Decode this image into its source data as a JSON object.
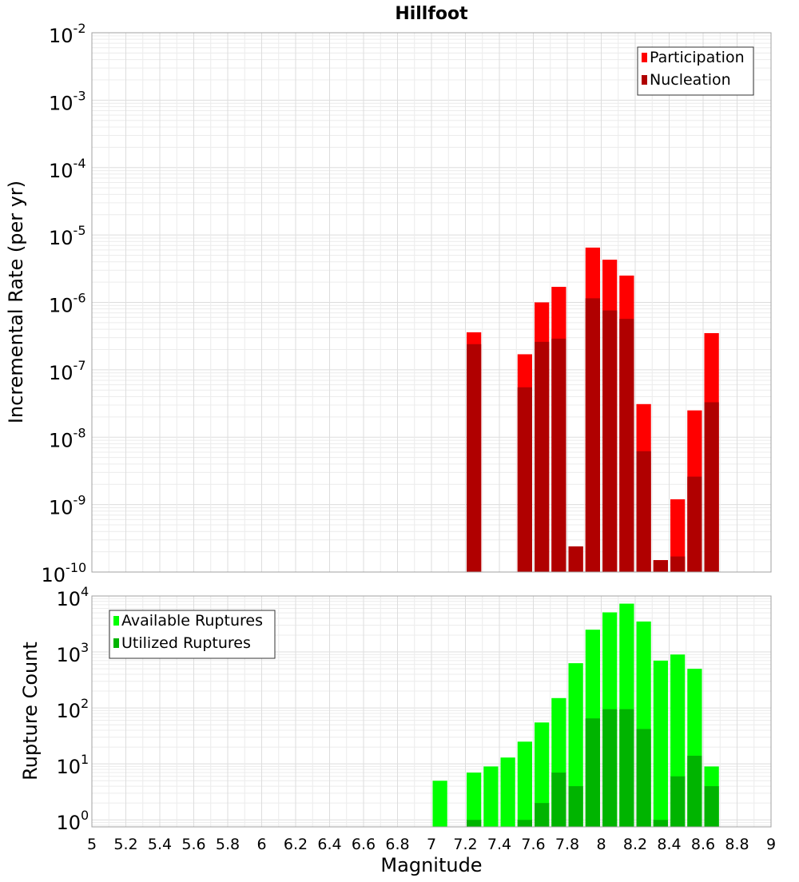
{
  "chart_data": [
    {
      "type": "bar",
      "title": "Hillfoot",
      "xlabel": "",
      "ylabel": "Incremental Rate (per yr)",
      "y_scale": "log",
      "ylim": [
        1e-10,
        0.01
      ],
      "y_tick_exponents": [
        "-10",
        "-9",
        "-8",
        "-7",
        "-6",
        "-5",
        "-4",
        "-3",
        "-2"
      ],
      "xlim": [
        5,
        9
      ],
      "grid": true,
      "legend_position": "top-right",
      "bar_width": 0.1,
      "x": [
        7.25,
        7.55,
        7.65,
        7.75,
        7.85,
        7.95,
        8.05,
        8.15,
        8.25,
        8.35,
        8.45,
        8.55,
        8.65
      ],
      "series": [
        {
          "name": "Participation",
          "color": "#ff0000",
          "values": [
            3.6e-07,
            1.7e-07,
            1e-06,
            1.7e-06,
            2.4e-10,
            6.5e-06,
            4.3e-06,
            2.5e-06,
            3.1e-08,
            1.5e-10,
            1.2e-09,
            2.5e-08,
            3.5e-07
          ]
        },
        {
          "name": "Nucleation",
          "color": "#b00000",
          "values": [
            2.4e-07,
            5.5e-08,
            2.6e-07,
            2.9e-07,
            2.4e-10,
            1.15e-06,
            7.6e-07,
            5.7e-07,
            6.2e-09,
            1.5e-10,
            1.7e-10,
            2.6e-09,
            3.3e-08
          ]
        }
      ]
    },
    {
      "type": "bar",
      "title": "",
      "xlabel": "Magnitude",
      "ylabel": "Rupture Count",
      "y_scale": "log",
      "ylim": [
        0.75,
        10000
      ],
      "y_tick_exponents": [
        "0",
        "1",
        "2",
        "3",
        "4"
      ],
      "xlim": [
        5,
        9
      ],
      "x_tick_labels": [
        "5",
        "5.2",
        "5.4",
        "5.6",
        "5.8",
        "6",
        "6.2",
        "6.4",
        "6.6",
        "6.8",
        "7",
        "7.2",
        "7.4",
        "7.6",
        "7.8",
        "8",
        "8.2",
        "8.4",
        "8.6",
        "8.8",
        "9"
      ],
      "grid": true,
      "legend_position": "top-left",
      "bar_width": 0.1,
      "x": [
        7.05,
        7.25,
        7.35,
        7.45,
        7.55,
        7.65,
        7.75,
        7.85,
        7.95,
        8.05,
        8.15,
        8.25,
        8.35,
        8.45,
        8.55,
        8.65
      ],
      "series": [
        {
          "name": "Available Ruptures",
          "color": "#00ff00",
          "values": [
            5,
            7,
            9,
            13,
            25,
            55,
            150,
            630,
            2500,
            5100,
            7300,
            3500,
            700,
            900,
            500,
            9
          ]
        },
        {
          "name": "Utilized Ruptures",
          "color": "#00b400",
          "values": [
            0,
            1,
            0,
            0,
            1,
            2,
            7,
            4,
            65,
            95,
            95,
            42,
            1,
            6,
            14,
            4
          ]
        }
      ]
    }
  ]
}
